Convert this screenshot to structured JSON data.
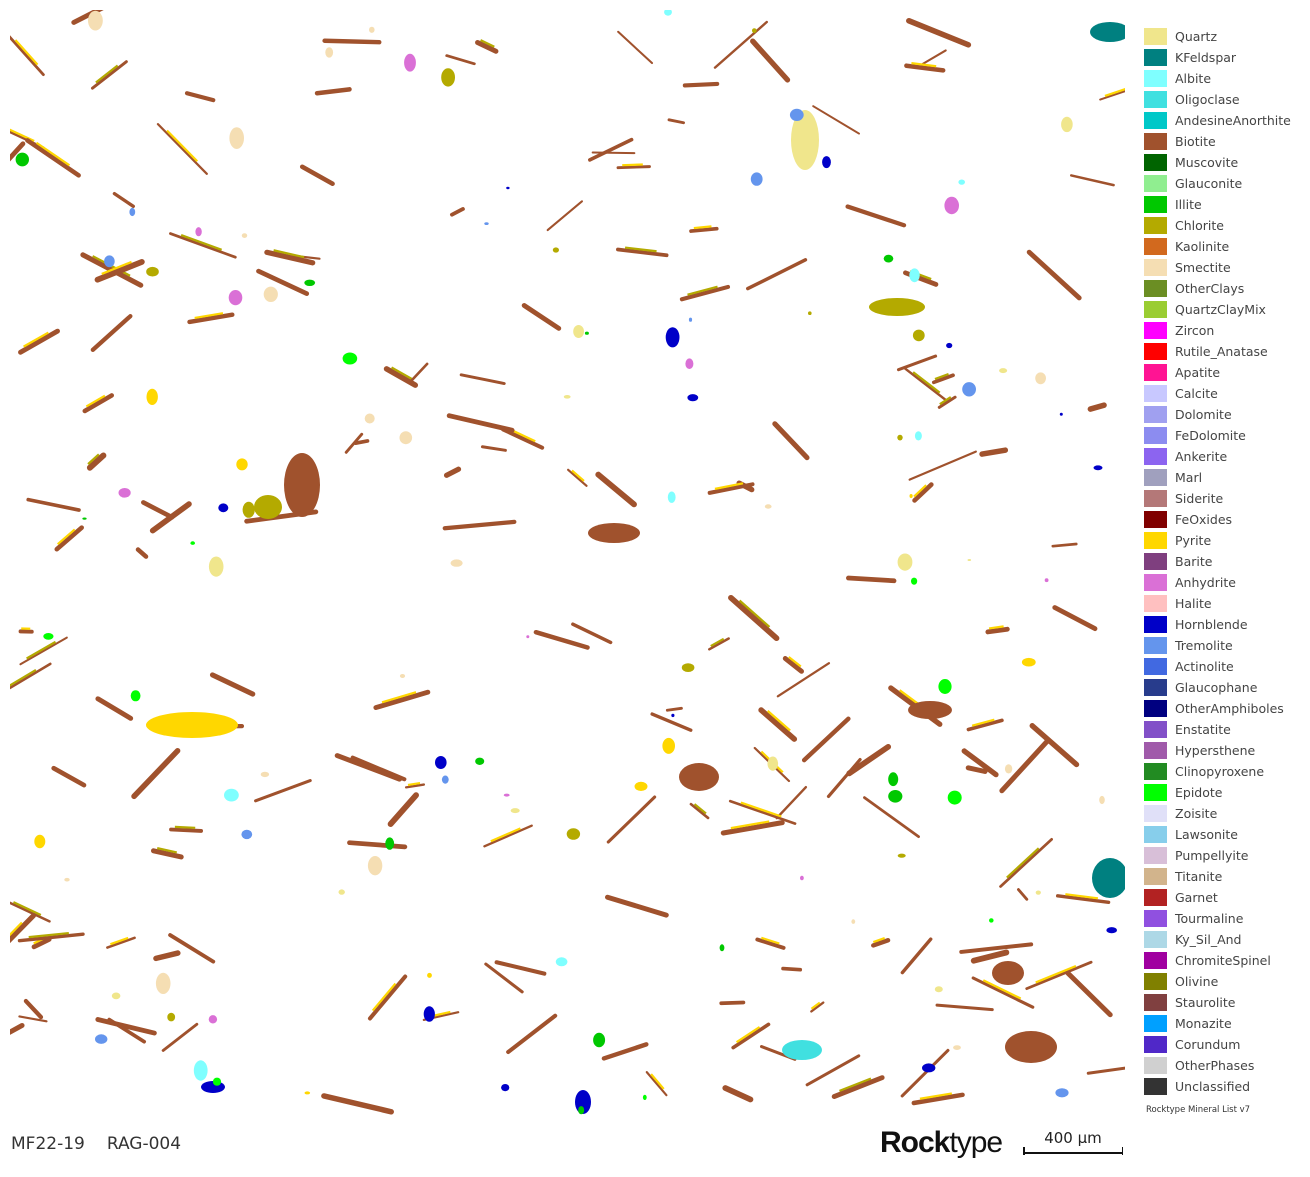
{
  "legend": {
    "items": [
      {
        "label": "Quartz",
        "color": "#F0E68C"
      },
      {
        "label": "KFeldspar",
        "color": "#008080"
      },
      {
        "label": "Albite",
        "color": "#7FFFFF"
      },
      {
        "label": "Oligoclase",
        "color": "#40E0E0"
      },
      {
        "label": "AndesineAnorthite",
        "color": "#00C8C8"
      },
      {
        "label": "Biotite",
        "color": "#A0522D"
      },
      {
        "label": "Muscovite",
        "color": "#006400"
      },
      {
        "label": "Glauconite",
        "color": "#90EE90"
      },
      {
        "label": "Illite",
        "color": "#00C800"
      },
      {
        "label": "Chlorite",
        "color": "#B4AA00"
      },
      {
        "label": "Kaolinite",
        "color": "#D2691E"
      },
      {
        "label": "Smectite",
        "color": "#F5DEB3"
      },
      {
        "label": "OtherClays",
        "color": "#6B8E23"
      },
      {
        "label": "QuartzClayMix",
        "color": "#9ACD32"
      },
      {
        "label": "Zircon",
        "color": "#FF00FF"
      },
      {
        "label": "Rutile_Anatase",
        "color": "#FF0000"
      },
      {
        "label": "Apatite",
        "color": "#FF1493"
      },
      {
        "label": "Calcite",
        "color": "#C8C8FF"
      },
      {
        "label": "Dolomite",
        "color": "#A0A0F0"
      },
      {
        "label": "FeDolomite",
        "color": "#8C8CF0"
      },
      {
        "label": "Ankerite",
        "color": "#8C64F0"
      },
      {
        "label": "Marl",
        "color": "#A0A0BE"
      },
      {
        "label": "Siderite",
        "color": "#B47878"
      },
      {
        "label": "FeOxides",
        "color": "#800000"
      },
      {
        "label": "Pyrite",
        "color": "#FFD700"
      },
      {
        "label": "Barite",
        "color": "#7F3F7F"
      },
      {
        "label": "Anhydrite",
        "color": "#DA70D6"
      },
      {
        "label": "Halite",
        "color": "#FFC0C0"
      },
      {
        "label": "Hornblende",
        "color": "#0000C8"
      },
      {
        "label": "Tremolite",
        "color": "#6495ED"
      },
      {
        "label": "Actinolite",
        "color": "#4169E1"
      },
      {
        "label": "Glaucophane",
        "color": "#283C8C"
      },
      {
        "label": "OtherAmphiboles",
        "color": "#000080"
      },
      {
        "label": "Enstatite",
        "color": "#8250C8"
      },
      {
        "label": "Hypersthene",
        "color": "#A05AAA"
      },
      {
        "label": "Clinopyroxene",
        "color": "#228B22"
      },
      {
        "label": "Epidote",
        "color": "#00FF00"
      },
      {
        "label": "Zoisite",
        "color": "#E0E0F8"
      },
      {
        "label": "Lawsonite",
        "color": "#87CEEB"
      },
      {
        "label": "Pumpellyite",
        "color": "#D8BFD8"
      },
      {
        "label": "Titanite",
        "color": "#D2B48C"
      },
      {
        "label": "Garnet",
        "color": "#B22222"
      },
      {
        "label": "Tourmaline",
        "color": "#9050E0"
      },
      {
        "label": "Ky_Sil_And",
        "color": "#ADD8E6"
      },
      {
        "label": "ChromiteSpinel",
        "color": "#A000A0"
      },
      {
        "label": "Olivine",
        "color": "#808000"
      },
      {
        "label": "Staurolite",
        "color": "#804040"
      },
      {
        "label": "Monazite",
        "color": "#00A0FF"
      },
      {
        "label": "Corundum",
        "color": "#5028C8"
      },
      {
        "label": "OtherPhases",
        "color": "#D0D0D0"
      },
      {
        "label": "Unclassified",
        "color": "#333333"
      }
    ],
    "version": "Rocktype Mineral List v7"
  },
  "sample": {
    "id": "MF22-19",
    "name": "RAG-004"
  },
  "logo": {
    "part1": "Rock",
    "part2": "type"
  },
  "scalebar": {
    "label": "400 µm"
  }
}
